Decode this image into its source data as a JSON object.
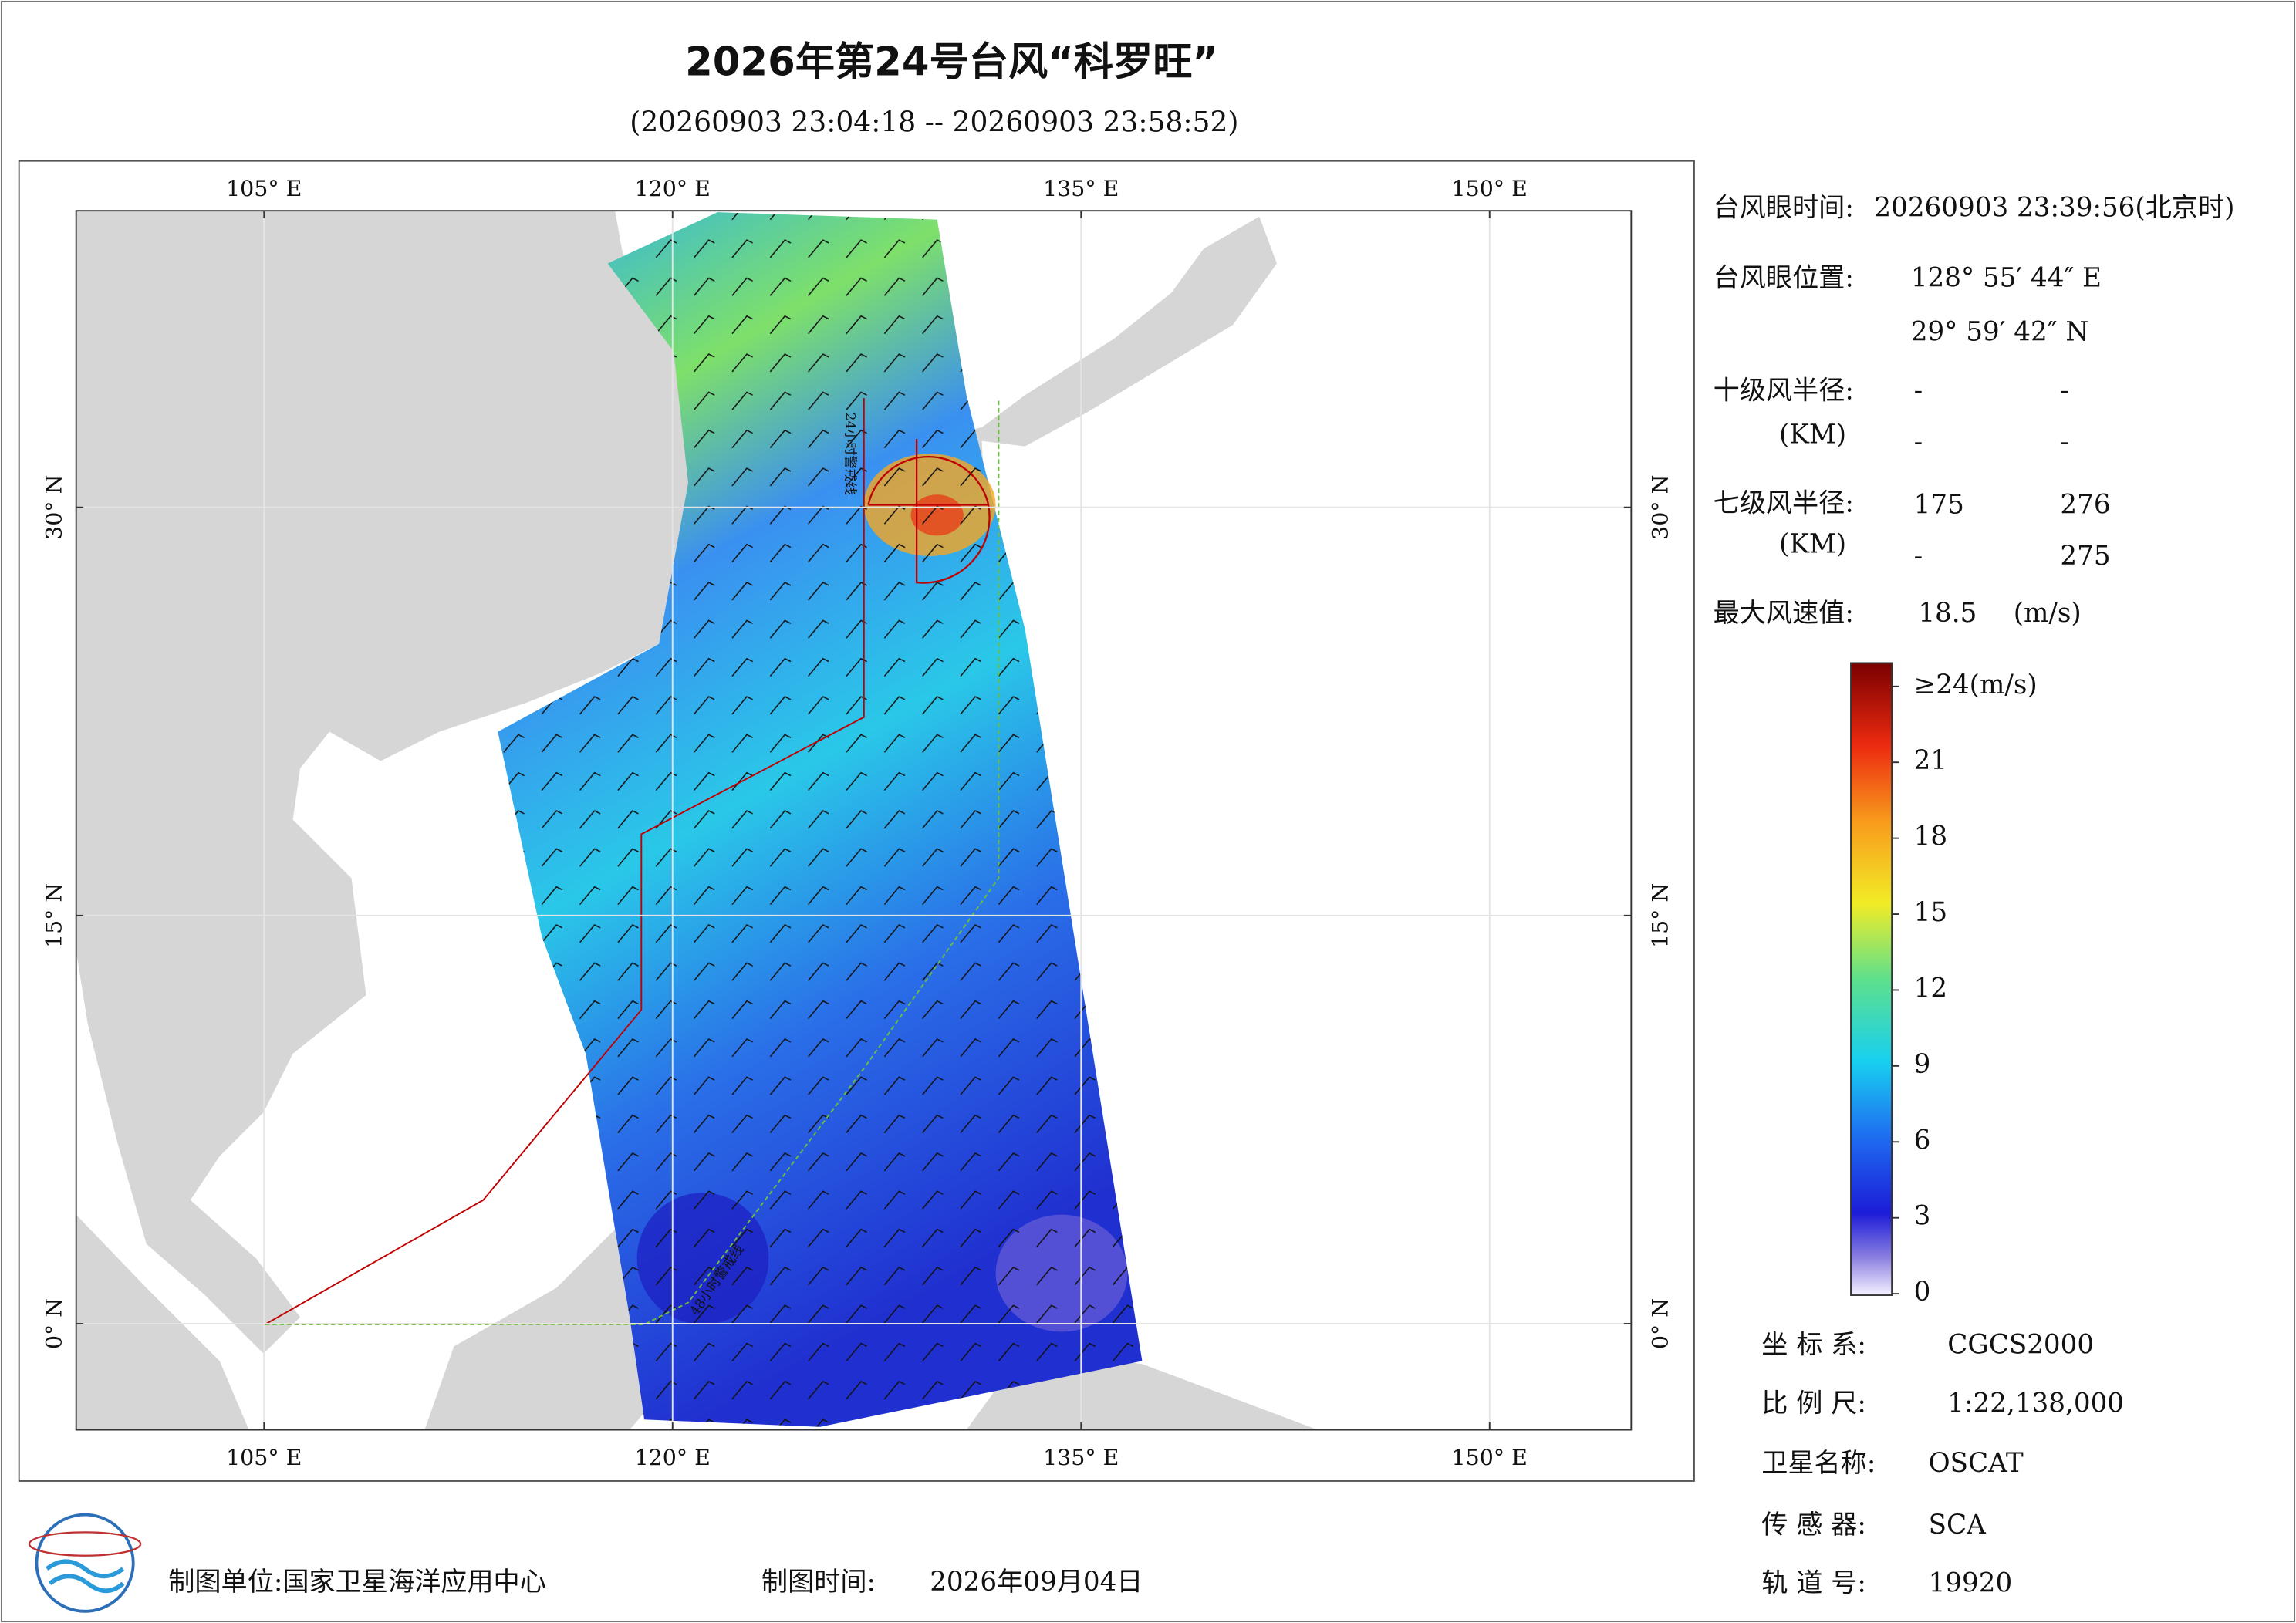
{
  "header": {
    "title": "2026年第24号台风“科罗旺”",
    "subtitle": "(20260903 23:04:18 -- 20260903 23:58:52)"
  },
  "map": {
    "lonlim": [
      98.1,
      155.2
    ],
    "latlim": [
      -3.9,
      40.9
    ],
    "lonticks": [
      {
        "value": 105,
        "label": "105° E"
      },
      {
        "value": 120,
        "label": "120° E"
      },
      {
        "value": 135,
        "label": "135° E"
      },
      {
        "value": 150,
        "label": "150° E"
      }
    ],
    "latticks": [
      {
        "value": 0,
        "label": "0° N"
      },
      {
        "value": 15,
        "label": "15° N"
      },
      {
        "value": 30,
        "label": "30° N"
      }
    ],
    "warning_24h": "24小时警戒线",
    "warning_48h": "48小时警戒线"
  },
  "info": {
    "eye_time_label": "台风眼时间:",
    "eye_time": "20260903 23:39:56(北京时)",
    "eye_pos_label": "台风眼位置:",
    "eye_lon": "128° 55′ 44″ E",
    "eye_lat": "29° 59′ 42″ N",
    "r10_label": "十级风半径:",
    "r10_unit": "(KM)",
    "r10": [
      "-",
      "-",
      "-",
      "-"
    ],
    "r7_label": "七级风半径:",
    "r7_unit": "(KM)",
    "r7": [
      175,
      276,
      "-",
      275
    ],
    "max_wind_label": "最大风速值:",
    "max_wind": 18.5,
    "max_wind_unit": "(m/s)"
  },
  "colorbar": {
    "range": [
      0,
      24
    ],
    "ticks": [
      0,
      3,
      6,
      9,
      12,
      15,
      18,
      21,
      {
        "value": 24,
        "label": "≥24(m/s)"
      }
    ]
  },
  "meta": {
    "crs_label": "坐 标 系:",
    "crs": "CGCS2000",
    "scale_label": "比 例 尺:",
    "scale": "1:22,138,000",
    "satellite_label": "卫星名称:",
    "satellite": "OSCAT",
    "sensor_label": "传 感 器:",
    "sensor": "SCA",
    "orbit_label": "轨 道 号:",
    "orbit": 19920
  },
  "footer": {
    "unit_label": "制图单位:国家卫星海洋应用中心",
    "time_label": "制图时间:",
    "time": "2026年09月04日"
  }
}
